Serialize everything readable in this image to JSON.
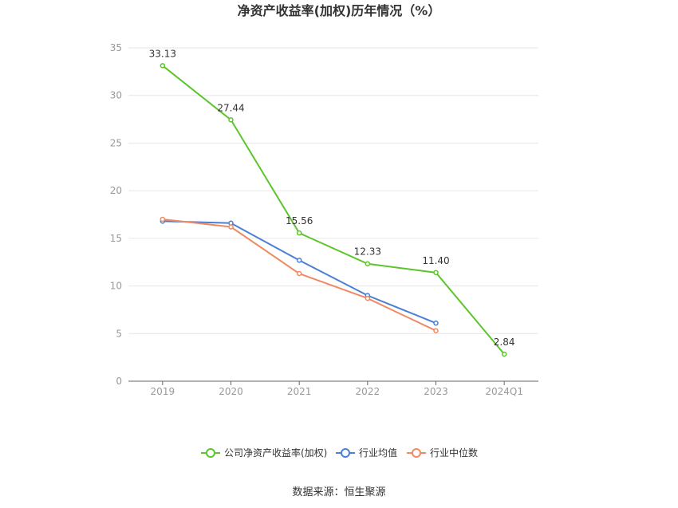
{
  "chart_data": {
    "type": "line",
    "title": "净资产收益率(加权)历年情况（%）",
    "categories": [
      "2019",
      "2020",
      "2021",
      "2022",
      "2023",
      "2024Q1"
    ],
    "ylim": [
      0,
      35
    ],
    "yticks": [
      0,
      5,
      10,
      15,
      20,
      25,
      30,
      35
    ],
    "grid": true,
    "legend_position": "bottom",
    "series": [
      {
        "name": "公司净资产收益率(加权)",
        "color": "#5cc52b",
        "values": [
          33.13,
          27.44,
          15.56,
          12.33,
          11.4,
          2.84
        ],
        "labels": [
          "33.13",
          "27.44",
          "15.56",
          "12.33",
          "11.40",
          "2.84"
        ]
      },
      {
        "name": "行业均值",
        "color": "#4a7fd6",
        "values": [
          16.8,
          16.6,
          12.7,
          9.0,
          6.1,
          null
        ]
      },
      {
        "name": "行业中位数",
        "color": "#f08a62",
        "values": [
          17.0,
          16.2,
          11.3,
          8.7,
          5.3,
          null
        ]
      }
    ]
  },
  "source": "数据来源：恒生聚源"
}
